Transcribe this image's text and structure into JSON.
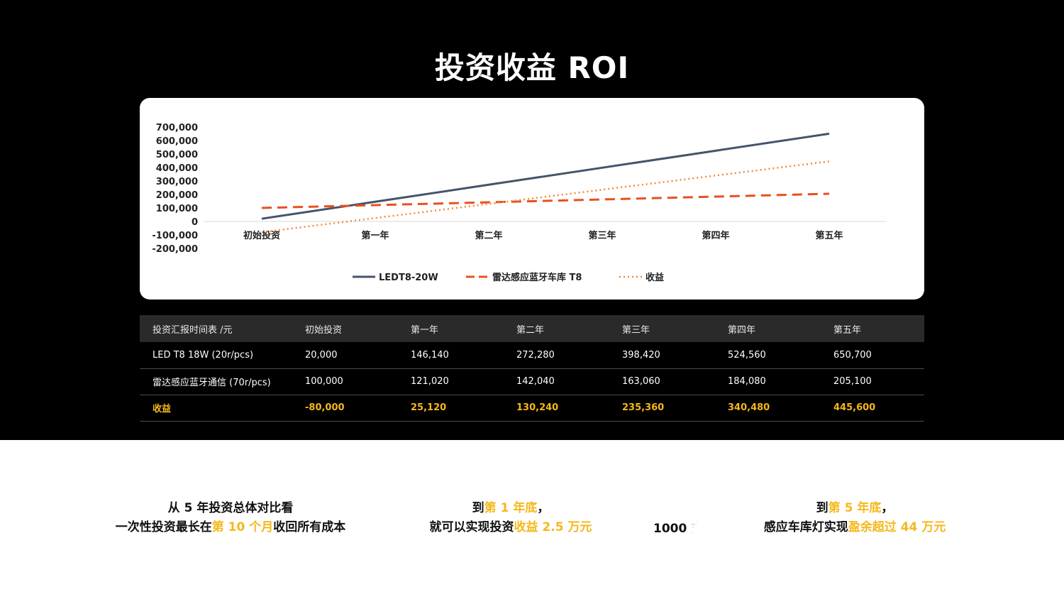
{
  "title": "投资收益 ROI",
  "chart_data": {
    "type": "line",
    "categories": [
      "初始投资",
      "第一年",
      "第二年",
      "第三年",
      "第四年",
      "第五年"
    ],
    "y_ticks": [
      "700,000",
      "600,000",
      "500,000",
      "400,000",
      "300,000",
      "200,000",
      "100,000",
      "0",
      "-100,000",
      "-200,000"
    ],
    "ylim": [
      -200000,
      700000
    ],
    "series": [
      {
        "name": "LEDT8-20W",
        "values": [
          20000,
          146140,
          272280,
          398420,
          524560,
          650700
        ],
        "color": "#44546a",
        "dash": "solid"
      },
      {
        "name": "雷达感应蓝牙车库 T8",
        "values": [
          100000,
          121020,
          142040,
          163060,
          184080,
          205100
        ],
        "color": "#e8501e",
        "dash": "dashed"
      },
      {
        "name": "收益",
        "values": [
          -80000,
          25120,
          130240,
          235360,
          340480,
          445600
        ],
        "color": "#f08a3c",
        "dash": "dotted"
      }
    ],
    "legend_position": "bottom",
    "grid": false
  },
  "table": {
    "headers": [
      "投资汇报时间表 /元",
      "初始投资",
      "第一年",
      "第二年",
      "第三年",
      "第四年",
      "第五年"
    ],
    "rows": [
      [
        "LED T8 18W (20r/pcs)",
        "20,000",
        "146,140",
        "272,280",
        "398,420",
        "524,560",
        "650,700"
      ],
      [
        "雷达感应蓝牙通信 (70r/pcs)",
        "100,000",
        "121,020",
        "142,040",
        "163,060",
        "184,080",
        "205,100"
      ],
      [
        "收益",
        "-80,000",
        "25,120",
        "130,240",
        "235,360",
        "340,480",
        "445,600"
      ]
    ]
  },
  "summary": {
    "s1_line1": "从 5 年投资总体对比看",
    "s1_line2_pre": "一次性投资最长在",
    "s1_line2_hl": "第 10 个月",
    "s1_line2_post": "收回所有成本",
    "s2_line1_pre": "到",
    "s2_line1_hl": "第 1 年底",
    "s2_line1_post": "，",
    "s2_line2_pre": "就可以实现投资",
    "s2_line2_hl": "收益 2.5 万元",
    "s3_prefix": "1000 支",
    "s3_line1_pre": "到",
    "s3_line1_hl": "第 5 年底",
    "s3_line1_post": "，",
    "s3_line2_pre": "感应车库灯实现",
    "s3_line2_hl": "盈余超过 44 万元"
  },
  "colors": {
    "accent": "#f5b81b",
    "background_top": "#000000",
    "table_header": "#2a2a2a"
  }
}
